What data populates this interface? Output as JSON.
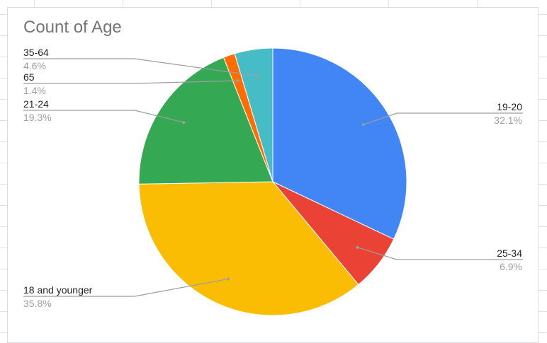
{
  "chart_data": {
    "type": "pie",
    "title": "Count of Age",
    "legend": "none",
    "slices": [
      {
        "label": "19-20",
        "percent_label": "32.1%",
        "value": 32.1,
        "color": "#4285F4"
      },
      {
        "label": "25-34",
        "percent_label": "6.9%",
        "value": 6.9,
        "color": "#EA4335"
      },
      {
        "label": "18 and younger",
        "percent_label": "35.8%",
        "value": 35.8,
        "color": "#FBBC04"
      },
      {
        "label": "21-24",
        "percent_label": "19.3%",
        "value": 19.3,
        "color": "#34A853"
      },
      {
        "label": "65",
        "percent_label": "1.4%",
        "value": 1.4,
        "color": "#FF6D01"
      },
      {
        "label": "35-64",
        "percent_label": "4.6%",
        "value": 4.6,
        "color": "#46BDC6"
      }
    ]
  }
}
